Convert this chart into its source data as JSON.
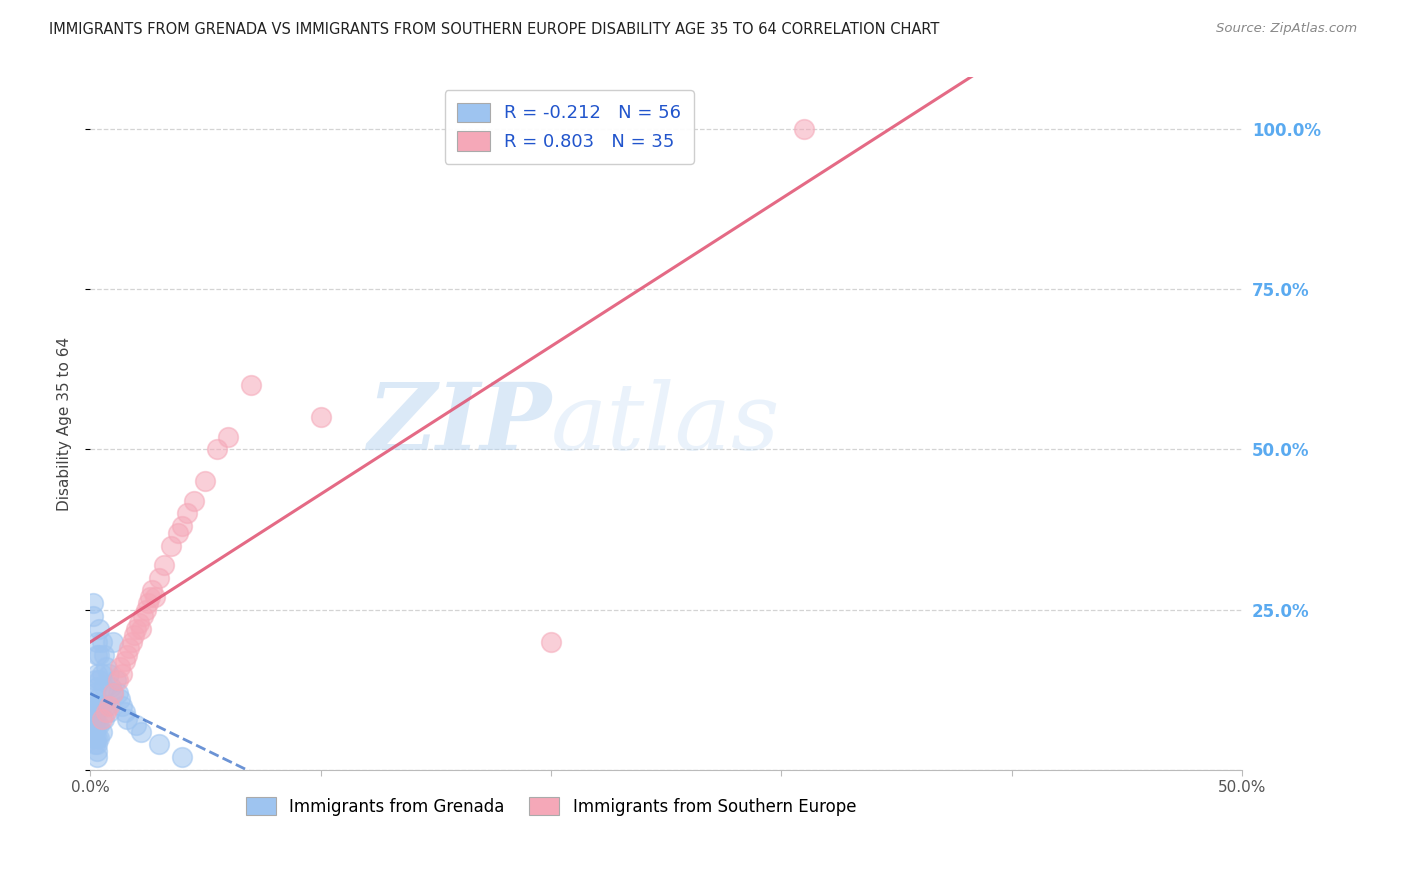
{
  "title": "IMMIGRANTS FROM GRENADA VS IMMIGRANTS FROM SOUTHERN EUROPE DISABILITY AGE 35 TO 64 CORRELATION CHART",
  "source": "Source: ZipAtlas.com",
  "ylabel": "Disability Age 35 to 64",
  "xlim": [
    0.0,
    0.5
  ],
  "ylim": [
    0.0,
    1.08
  ],
  "xtick_positions": [
    0.0,
    0.1,
    0.2,
    0.3,
    0.4,
    0.5
  ],
  "xtick_labels": [
    "0.0%",
    "",
    "",
    "",
    "",
    "50.0%"
  ],
  "ytick_positions": [
    0.0,
    0.25,
    0.5,
    0.75,
    1.0
  ],
  "ytick_labels": [
    "",
    "25.0%",
    "50.0%",
    "75.0%",
    "100.0%"
  ],
  "grenada_R": -0.212,
  "grenada_N": 56,
  "southern_R": 0.803,
  "southern_N": 35,
  "grenada_color": "#9ec4f0",
  "southern_color": "#f5a8b8",
  "grenada_line_color": "#3a6fc7",
  "southern_line_color": "#e05070",
  "watermark_zip": "ZIP",
  "watermark_atlas": "atlas",
  "background_color": "#ffffff",
  "grid_color": "#d0d0d0",
  "right_tick_color": "#5aaaf0",
  "legend_edge_color": "#cccccc",
  "bottom_legend_labels": [
    "Immigrants from Grenada",
    "Immigrants from Southern Europe"
  ],
  "grenada_x": [
    0.001,
    0.001,
    0.001,
    0.001,
    0.001,
    0.002,
    0.002,
    0.002,
    0.002,
    0.002,
    0.002,
    0.002,
    0.002,
    0.003,
    0.003,
    0.003,
    0.003,
    0.003,
    0.003,
    0.003,
    0.003,
    0.003,
    0.003,
    0.003,
    0.004,
    0.004,
    0.004,
    0.004,
    0.004,
    0.004,
    0.005,
    0.005,
    0.005,
    0.005,
    0.006,
    0.006,
    0.006,
    0.007,
    0.007,
    0.008,
    0.008,
    0.009,
    0.01,
    0.01,
    0.011,
    0.012,
    0.013,
    0.014,
    0.015,
    0.016,
    0.02,
    0.022,
    0.03,
    0.04,
    0.001,
    0.001
  ],
  "grenada_y": [
    0.1,
    0.08,
    0.07,
    0.06,
    0.05,
    0.14,
    0.12,
    0.1,
    0.08,
    0.07,
    0.06,
    0.05,
    0.04,
    0.2,
    0.18,
    0.15,
    0.13,
    0.11,
    0.09,
    0.07,
    0.05,
    0.04,
    0.03,
    0.02,
    0.22,
    0.18,
    0.14,
    0.1,
    0.07,
    0.05,
    0.2,
    0.15,
    0.1,
    0.06,
    0.18,
    0.13,
    0.08,
    0.16,
    0.1,
    0.15,
    0.09,
    0.13,
    0.2,
    0.12,
    0.14,
    0.12,
    0.11,
    0.1,
    0.09,
    0.08,
    0.07,
    0.06,
    0.04,
    0.02,
    0.26,
    0.24
  ],
  "southern_x": [
    0.005,
    0.007,
    0.008,
    0.01,
    0.012,
    0.013,
    0.014,
    0.015,
    0.016,
    0.017,
    0.018,
    0.019,
    0.02,
    0.021,
    0.022,
    0.023,
    0.024,
    0.025,
    0.026,
    0.027,
    0.028,
    0.03,
    0.032,
    0.035,
    0.038,
    0.04,
    0.042,
    0.045,
    0.05,
    0.055,
    0.06,
    0.07,
    0.1,
    0.2,
    0.31
  ],
  "southern_y": [
    0.08,
    0.09,
    0.1,
    0.12,
    0.14,
    0.16,
    0.15,
    0.17,
    0.18,
    0.19,
    0.2,
    0.21,
    0.22,
    0.23,
    0.22,
    0.24,
    0.25,
    0.26,
    0.27,
    0.28,
    0.27,
    0.3,
    0.32,
    0.35,
    0.37,
    0.38,
    0.4,
    0.42,
    0.45,
    0.5,
    0.52,
    0.6,
    0.55,
    0.2,
    1.0
  ]
}
